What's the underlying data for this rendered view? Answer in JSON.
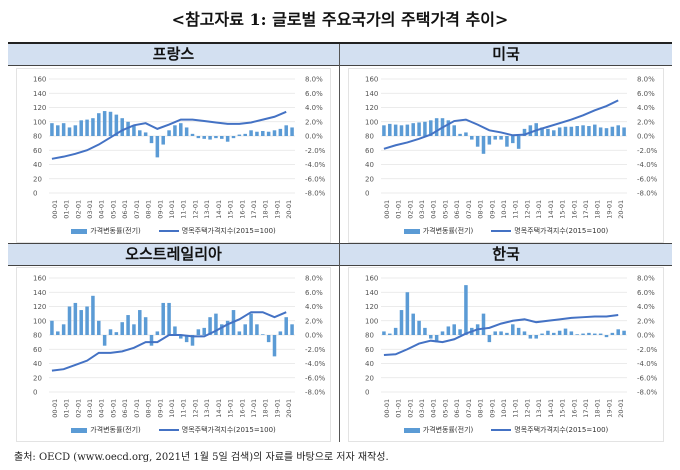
{
  "title": "<참고자료 1: 글로벌 주요국가의 주택가격 추이>",
  "footer": "출처: OECD (www.oecd.org, 2021년 1월 5일 검색)의 자료를 바탕으로 저자 재작성.",
  "colors": {
    "bar": "#5b9bd5",
    "line": "#4472c4",
    "header": "#d3e0f1"
  },
  "chart_data": [
    {
      "type": "bar+line",
      "title": "프랑스",
      "x_ticks": [
        "2000-01",
        "2001-01",
        "2002-01",
        "2003-01",
        "2004-01",
        "2005-01",
        "2006-01",
        "2007-01",
        "2008-01",
        "2009-01",
        "2010-01",
        "2011-01",
        "2012-01",
        "2013-01",
        "2014-01",
        "2015-01",
        "2016-01",
        "2017-01",
        "2018-01",
        "2019-01",
        "2020-01"
      ],
      "left_ticks": [
        "160",
        "140",
        "120",
        "100",
        "80",
        "60",
        "40",
        "20",
        "0"
      ],
      "left_range": [
        0,
        160
      ],
      "right_ticks": [
        "8.0%",
        "6.0%",
        "4.0%",
        "2.0%",
        "0.0%",
        "-2.0%",
        "-4.0%",
        "-6.0%",
        "-8.0%"
      ],
      "right_range": [
        -8,
        8
      ],
      "legend": [
        "가격변동률(전기)",
        "명목주택가격지수(2015=100)"
      ],
      "index": [
        48,
        51,
        55,
        60,
        68,
        78,
        88,
        95,
        98,
        90,
        96,
        103,
        103,
        101,
        99,
        97,
        97,
        99,
        103,
        107,
        114
      ],
      "change": [
        1.8,
        1.5,
        1.8,
        1.2,
        1.5,
        2.2,
        2.3,
        2.5,
        3.2,
        3.5,
        3.4,
        3.0,
        2.5,
        2.0,
        1.5,
        0.8,
        0.5,
        -1.0,
        -3.0,
        -1.2,
        0.8,
        1.5,
        1.8,
        1.2,
        0.3,
        -0.3,
        -0.4,
        -0.5,
        -0.3,
        -0.4,
        -0.8,
        -0.3,
        0.2,
        0.3,
        0.8,
        0.6,
        0.7,
        0.6,
        0.8,
        1.0,
        1.5,
        1.2
      ]
    },
    {
      "type": "bar+line",
      "title": "미국",
      "x_ticks": [
        "2000-01",
        "2001-01",
        "2002-01",
        "2003-01",
        "2004-01",
        "2005-01",
        "2006-01",
        "2007-01",
        "2008-01",
        "2009-01",
        "2010-01",
        "2011-01",
        "2012-01",
        "2013-01",
        "2014-01",
        "2015-01",
        "2016-01",
        "2017-01",
        "2018-01",
        "2019-01",
        "2020-01"
      ],
      "left_ticks": [
        "160",
        "140",
        "120",
        "100",
        "80",
        "60",
        "40",
        "20",
        "0"
      ],
      "left_range": [
        0,
        160
      ],
      "right_ticks": [
        "8.0%",
        "6.0%",
        "4.0%",
        "2.0%",
        "0.0%",
        "-2.0%",
        "-4.0%",
        "-6.0%",
        "-8.0%"
      ],
      "right_range": [
        -8,
        8
      ],
      "legend": [
        "가격변동률(전기)",
        "명목주택가격지수(2015=100)"
      ],
      "index": [
        62,
        67,
        71,
        76,
        82,
        92,
        101,
        103,
        96,
        88,
        85,
        81,
        82,
        88,
        93,
        98,
        103,
        109,
        116,
        122,
        130
      ],
      "change": [
        1.5,
        1.7,
        1.6,
        1.5,
        1.6,
        1.8,
        1.9,
        2.0,
        2.2,
        2.5,
        2.5,
        2.2,
        1.5,
        0.3,
        0.5,
        -0.5,
        -1.5,
        -2.5,
        -1.2,
        -0.5,
        -0.5,
        -1.5,
        -1.0,
        -1.8,
        1.0,
        1.5,
        1.8,
        1.2,
        1.0,
        0.8,
        1.2,
        1.3,
        1.3,
        1.4,
        1.5,
        1.4,
        1.6,
        1.2,
        1.1,
        1.3,
        1.5,
        1.2
      ]
    },
    {
      "type": "bar+line",
      "title": "오스트레일리아",
      "x_ticks": [
        "2000-01",
        "2001-01",
        "2002-01",
        "2003-01",
        "2004-01",
        "2005-01",
        "2006-01",
        "2007-01",
        "2008-01",
        "2009-01",
        "2010-01",
        "2011-01",
        "2012-01",
        "2013-01",
        "2014-01",
        "2015-01",
        "2016-01",
        "2017-01",
        "2018-01",
        "2019-01",
        "2020-01"
      ],
      "left_ticks": [
        "160",
        "140",
        "120",
        "100",
        "80",
        "60",
        "40",
        "20",
        "0"
      ],
      "left_range": [
        0,
        160
      ],
      "right_ticks": [
        "8.0%",
        "6.0%",
        "4.0%",
        "2.0%",
        "0.0%",
        "-2.0%",
        "-4.0%",
        "-6.0%",
        "-8.0%"
      ],
      "right_range": [
        -8,
        8
      ],
      "legend": [
        "가격변동률(전기)",
        "명목주택가격지수(2015=100)"
      ],
      "index": [
        30,
        32,
        38,
        44,
        55,
        55,
        57,
        62,
        70,
        70,
        80,
        80,
        78,
        78,
        86,
        95,
        102,
        112,
        112,
        105,
        112
      ],
      "change": [
        2.0,
        0.5,
        1.5,
        4.0,
        4.5,
        3.5,
        4.0,
        5.5,
        2.0,
        -1.5,
        0.8,
        0.4,
        1.8,
        2.8,
        1.5,
        3.5,
        2.5,
        -1.5,
        0.5,
        4.5,
        4.5,
        1.2,
        -0.5,
        -1.0,
        -1.5,
        0.8,
        1.0,
        2.5,
        3.0,
        1.5,
        2.0,
        3.5,
        0.5,
        1.5,
        3.0,
        1.5,
        0.1,
        -1.0,
        -3.0,
        0.5,
        2.5,
        1.5
      ]
    },
    {
      "type": "bar+line",
      "title": "한국",
      "x_ticks": [
        "2000-01",
        "2001-01",
        "2002-01",
        "2003-01",
        "2004-01",
        "2005-01",
        "2006-01",
        "2007-01",
        "2008-01",
        "2009-01",
        "2010-01",
        "2011-01",
        "2012-01",
        "2013-01",
        "2014-01",
        "2015-01",
        "2016-01",
        "2017-01",
        "2018-01",
        "2019-01",
        "2020-01"
      ],
      "left_ticks": [
        "160",
        "140",
        "120",
        "100",
        "80",
        "60",
        "40",
        "20",
        "0"
      ],
      "left_range": [
        0,
        160
      ],
      "right_ticks": [
        "8.0%",
        "6.0%",
        "4.0%",
        "2.0%",
        "0.0%",
        "-2.0%",
        "-4.0%",
        "-6.0%",
        "-8.0%"
      ],
      "right_range": [
        -8,
        8
      ],
      "legend": [
        "가격변동률(전기)",
        "명목주택가격지수(2015=100)"
      ],
      "index": [
        52,
        53,
        60,
        68,
        72,
        70,
        74,
        82,
        88,
        90,
        96,
        100,
        102,
        98,
        100,
        102,
        104,
        105,
        106,
        106,
        108
      ],
      "change": [
        0.5,
        0.2,
        1.0,
        3.5,
        6.0,
        3.0,
        2.0,
        1.0,
        -0.5,
        -1.0,
        0.5,
        1.2,
        1.5,
        0.8,
        7.0,
        1.0,
        1.5,
        3.0,
        -1.0,
        0.5,
        0.5,
        0.3,
        1.5,
        1.0,
        0.5,
        -0.5,
        -0.5,
        0.2,
        0.6,
        0.3,
        0.6,
        0.9,
        0.5,
        0.1,
        0.2,
        0.3,
        0.2,
        0.2,
        -0.3,
        0.3,
        0.8,
        0.6
      ]
    }
  ]
}
